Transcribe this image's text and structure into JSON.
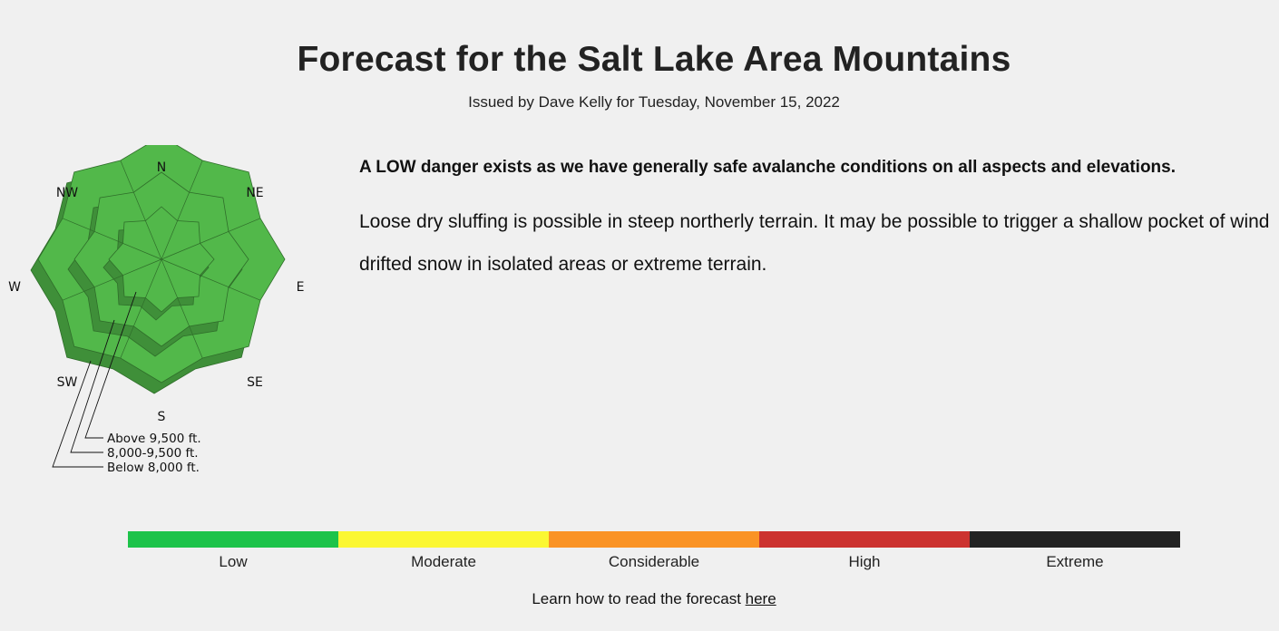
{
  "header": {
    "title": "Forecast for the Salt Lake Area Mountains",
    "issued": "Issued by Dave Kelly for Tuesday, November 15, 2022"
  },
  "rose": {
    "aspects": [
      "N",
      "NE",
      "E",
      "SE",
      "S",
      "SW",
      "W",
      "NW"
    ],
    "elevation_bands": [
      {
        "label": "Above 9,500 ft.",
        "rating": "Low"
      },
      {
        "label": "8,000-9,500 ft.",
        "rating": "Low"
      },
      {
        "label": "Below 8,000 ft.",
        "rating": "Low"
      }
    ],
    "fill_color": "#52b84a",
    "side_color": "#3f8f39"
  },
  "summary": {
    "bottom_line": "A LOW danger exists as we have generally safe avalanche conditions on all aspects and elevations.",
    "details": "Loose dry sluffing is possible in steep northerly terrain. It may be possible to trigger a shallow pocket of wind drifted snow in isolated areas or extreme terrain."
  },
  "danger_scale": [
    {
      "label": "Low",
      "color": "#1dc34a"
    },
    {
      "label": "Moderate",
      "color": "#fbf733"
    },
    {
      "label": "Considerable",
      "color": "#fa9325"
    },
    {
      "label": "High",
      "color": "#cc3330"
    },
    {
      "label": "Extreme",
      "color": "#232323"
    }
  ],
  "footer": {
    "learn_text": "Learn how to read the forecast ",
    "learn_link": "here"
  }
}
